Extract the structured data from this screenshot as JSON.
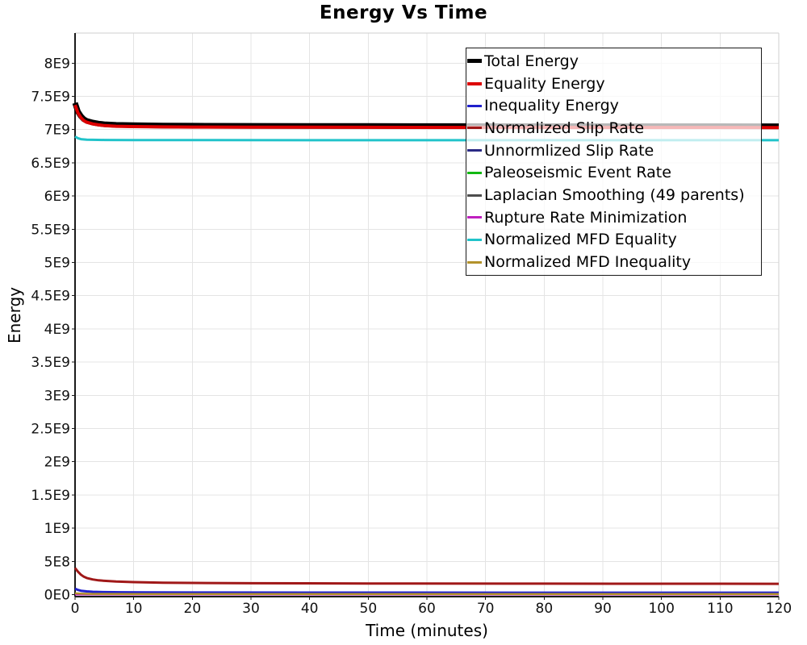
{
  "chart_data": {
    "type": "line",
    "title": "Energy Vs Time",
    "xlabel": "Time (minutes)",
    "ylabel": "Energy",
    "xlim": [
      0,
      120
    ],
    "ylim": [
      0,
      8450000000.0
    ],
    "grid": true,
    "legend_position": "top-right-inside",
    "colors": {
      "grid": "#e4e4e4",
      "frame": "#cfcfcf",
      "axis": "#1a1a1a",
      "tick_label": "#111111"
    },
    "x_ticks": [
      {
        "value": 0,
        "label": "0"
      },
      {
        "value": 10,
        "label": "10"
      },
      {
        "value": 20,
        "label": "20"
      },
      {
        "value": 30,
        "label": "30"
      },
      {
        "value": 40,
        "label": "40"
      },
      {
        "value": 50,
        "label": "50"
      },
      {
        "value": 60,
        "label": "60"
      },
      {
        "value": 70,
        "label": "70"
      },
      {
        "value": 80,
        "label": "80"
      },
      {
        "value": 90,
        "label": "90"
      },
      {
        "value": 100,
        "label": "100"
      },
      {
        "value": 110,
        "label": "110"
      },
      {
        "value": 120,
        "label": "120"
      }
    ],
    "y_ticks": [
      {
        "value": 0,
        "label": "0E0"
      },
      {
        "value": 500000000.0,
        "label": "5E8"
      },
      {
        "value": 1000000000.0,
        "label": "1E9"
      },
      {
        "value": 1500000000.0,
        "label": "1.5E9"
      },
      {
        "value": 2000000000.0,
        "label": "2E9"
      },
      {
        "value": 2500000000.0,
        "label": "2.5E9"
      },
      {
        "value": 3000000000.0,
        "label": "3E9"
      },
      {
        "value": 3500000000.0,
        "label": "3.5E9"
      },
      {
        "value": 4000000000.0,
        "label": "4E9"
      },
      {
        "value": 4500000000.0,
        "label": "4.5E9"
      },
      {
        "value": 5000000000.0,
        "label": "5E9"
      },
      {
        "value": 5500000000.0,
        "label": "5.5E9"
      },
      {
        "value": 6000000000.0,
        "label": "6E9"
      },
      {
        "value": 6500000000.0,
        "label": "6.5E9"
      },
      {
        "value": 7000000000.0,
        "label": "7E9"
      },
      {
        "value": 7500000000.0,
        "label": "7.5E9"
      },
      {
        "value": 8000000000.0,
        "label": "8E9"
      }
    ],
    "series": [
      {
        "name": "Total Energy",
        "color": "#000000",
        "width": 7,
        "points": [
          [
            0,
            7400000000.0
          ],
          [
            0.5,
            7270000000.0
          ],
          [
            1,
            7200000000.0
          ],
          [
            1.5,
            7155000000.0
          ],
          [
            2,
            7130000000.0
          ],
          [
            3,
            7105000000.0
          ],
          [
            4,
            7090000000.0
          ],
          [
            5,
            7080000000.0
          ],
          [
            7,
            7070000000.0
          ],
          [
            10,
            7065000000.0
          ],
          [
            15,
            7060000000.0
          ],
          [
            20,
            7058000000.0
          ],
          [
            30,
            7056000000.0
          ],
          [
            50,
            7054000000.0
          ],
          [
            80,
            7052000000.0
          ],
          [
            120,
            7050000000.0
          ]
        ]
      },
      {
        "name": "Equality Energy",
        "color": "#dd0000",
        "width": 4,
        "points": [
          [
            0,
            7370000000.0
          ],
          [
            0.5,
            7250000000.0
          ],
          [
            1,
            7180000000.0
          ],
          [
            1.5,
            7135000000.0
          ],
          [
            2,
            7110000000.0
          ],
          [
            3,
            7085000000.0
          ],
          [
            4,
            7070000000.0
          ],
          [
            5,
            7060000000.0
          ],
          [
            7,
            7050000000.0
          ],
          [
            10,
            7045000000.0
          ],
          [
            15,
            7040000000.0
          ],
          [
            20,
            7038000000.0
          ],
          [
            30,
            7036000000.0
          ],
          [
            50,
            7034000000.0
          ],
          [
            80,
            7032000000.0
          ],
          [
            120,
            7030000000.0
          ]
        ]
      },
      {
        "name": "Inequality Energy",
        "color": "#2020cc",
        "width": 3,
        "points": [
          [
            0,
            90000000.0
          ],
          [
            0.5,
            70000000.0
          ],
          [
            1,
            58000000.0
          ],
          [
            2,
            48000000.0
          ],
          [
            3,
            43000000.0
          ],
          [
            5,
            38000000.0
          ],
          [
            8,
            35000000.0
          ],
          [
            12,
            33000000.0
          ],
          [
            20,
            31000000.0
          ],
          [
            40,
            30000000.0
          ],
          [
            80,
            29000000.0
          ],
          [
            120,
            29000000.0
          ]
        ]
      },
      {
        "name": "Normalized Slip Rate",
        "color": "#a01818",
        "width": 3,
        "points": [
          [
            0,
            400000000.0
          ],
          [
            0.5,
            345000000.0
          ],
          [
            1,
            300000000.0
          ],
          [
            1.5,
            270000000.0
          ],
          [
            2,
            250000000.0
          ],
          [
            3,
            228000000.0
          ],
          [
            4,
            215000000.0
          ],
          [
            5,
            207000000.0
          ],
          [
            7,
            196000000.0
          ],
          [
            10,
            188000000.0
          ],
          [
            15,
            180000000.0
          ],
          [
            20,
            176000000.0
          ],
          [
            30,
            171000000.0
          ],
          [
            50,
            168000000.0
          ],
          [
            80,
            165000000.0
          ],
          [
            120,
            163000000.0
          ]
        ]
      },
      {
        "name": "Unnormlized Slip Rate",
        "color": "#2a2a85",
        "width": 2.5,
        "points": [
          [
            0,
            12000000.0
          ],
          [
            2,
            8000000.0
          ],
          [
            10,
            7000000.0
          ],
          [
            120,
            6000000.0
          ]
        ]
      },
      {
        "name": "Paleoseismic Event Rate",
        "color": "#12b812",
        "width": 2.5,
        "points": [
          [
            0,
            8000000.0
          ],
          [
            2,
            5000000.0
          ],
          [
            120,
            4000000.0
          ]
        ]
      },
      {
        "name": "Laplacian Smoothing (49 parents)",
        "color": "#4d4d4d",
        "width": 2.5,
        "points": [
          [
            0,
            6000000.0
          ],
          [
            2,
            4000000.0
          ],
          [
            120,
            3000000.0
          ]
        ]
      },
      {
        "name": "Rupture Rate Minimization",
        "color": "#bf1fbf",
        "width": 2.5,
        "points": [
          [
            0,
            4000000.0
          ],
          [
            2,
            3000000.0
          ],
          [
            120,
            2000000.0
          ]
        ]
      },
      {
        "name": "Normalized MFD Equality",
        "color": "#21c3ca",
        "width": 3,
        "points": [
          [
            0,
            6895000000.0
          ],
          [
            0.5,
            6870000000.0
          ],
          [
            1,
            6855000000.0
          ],
          [
            2,
            6848000000.0
          ],
          [
            5,
            6843000000.0
          ],
          [
            10,
            6841000000.0
          ],
          [
            120,
            6840000000.0
          ]
        ]
      },
      {
        "name": "Normalized MFD Inequality",
        "color": "#b3922b",
        "width": 2.5,
        "points": [
          [
            0,
            20000000.0
          ],
          [
            1,
            14000000.0
          ],
          [
            3,
            11000000.0
          ],
          [
            10,
            10000000.0
          ],
          [
            120,
            9000000.0
          ]
        ]
      }
    ]
  }
}
